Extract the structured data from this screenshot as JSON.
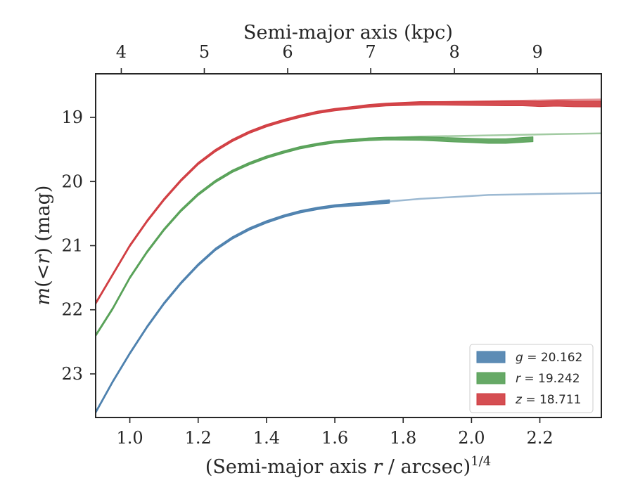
{
  "chart_data": {
    "type": "line",
    "xlabel": "(Semi-major axis r / arcsec)^{1/4}",
    "ylabel": "m(<r) (mag)",
    "top_xlabel": "Semi-major axis (kpc)",
    "xlim": [
      0.9,
      2.38
    ],
    "ylim": [
      23.68,
      18.32
    ],
    "x_ticks": [
      1.0,
      1.2,
      1.4,
      1.6,
      1.8,
      2.0,
      2.2
    ],
    "x_tick_labels": [
      "1.0",
      "1.2",
      "1.4",
      "1.6",
      "1.8",
      "2.0",
      "2.2"
    ],
    "y_ticks": [
      19,
      20,
      21,
      22,
      23
    ],
    "y_tick_labels": [
      "19",
      "20",
      "21",
      "22",
      "23"
    ],
    "top_ticks": [
      4,
      5,
      6,
      7,
      8,
      9
    ],
    "top_tick_labels": [
      "4",
      "5",
      "6",
      "7",
      "8",
      "9"
    ],
    "top_tick_x": [
      0.975,
      1.218,
      1.462,
      1.705,
      1.95,
      2.193
    ],
    "grid": false,
    "legend_position": "bottom-right",
    "series": [
      {
        "name": "g = 20.162",
        "legend_var": "g",
        "legend_val": "= 20.162",
        "color": "#4b7fad",
        "model_x": [
          0.9,
          0.95,
          1.0,
          1.05,
          1.1,
          1.15,
          1.2,
          1.25,
          1.3,
          1.35,
          1.4,
          1.45,
          1.5,
          1.55,
          1.6,
          1.65,
          1.7,
          1.76,
          1.85,
          1.95,
          2.05,
          2.15,
          2.25,
          2.38
        ],
        "model_y": [
          23.6,
          23.12,
          22.68,
          22.27,
          21.9,
          21.58,
          21.3,
          21.06,
          20.88,
          20.74,
          20.63,
          20.54,
          20.47,
          20.42,
          20.38,
          20.35,
          20.33,
          20.31,
          20.27,
          20.24,
          20.21,
          20.2,
          20.19,
          20.18
        ],
        "data_x": [
          0.9,
          0.95,
          1.0,
          1.05,
          1.1,
          1.15,
          1.2,
          1.25,
          1.3,
          1.35,
          1.4,
          1.45,
          1.5,
          1.55,
          1.6,
          1.65,
          1.7,
          1.76
        ],
        "data_y": [
          23.6,
          23.12,
          22.68,
          22.27,
          21.9,
          21.58,
          21.3,
          21.06,
          20.88,
          20.74,
          20.63,
          20.54,
          20.47,
          20.42,
          20.38,
          20.36,
          20.34,
          20.31
        ],
        "data_width": [
          3.5,
          3.5,
          3.5,
          3.5,
          3.5,
          3.5,
          3.5,
          3.5,
          3.5,
          3.5,
          3.5,
          3.5,
          3.5,
          3.5,
          3.5,
          4,
          4.5,
          5
        ]
      },
      {
        "name": "r = 19.242",
        "legend_var": "r",
        "legend_val": "= 19.242",
        "color": "#55a055",
        "model_x": [
          0.9,
          0.95,
          1.0,
          1.05,
          1.1,
          1.15,
          1.2,
          1.25,
          1.3,
          1.35,
          1.4,
          1.45,
          1.5,
          1.55,
          1.6,
          1.65,
          1.7,
          1.75,
          1.85,
          1.95,
          2.05,
          2.15,
          2.25,
          2.38
        ],
        "model_y": [
          22.4,
          21.98,
          21.5,
          21.1,
          20.75,
          20.45,
          20.2,
          20.0,
          19.84,
          19.72,
          19.62,
          19.54,
          19.47,
          19.42,
          19.38,
          19.35,
          19.33,
          19.32,
          19.3,
          19.29,
          19.28,
          19.27,
          19.26,
          19.25
        ],
        "data_x": [
          0.9,
          0.95,
          1.0,
          1.05,
          1.1,
          1.15,
          1.2,
          1.25,
          1.3,
          1.35,
          1.4,
          1.45,
          1.5,
          1.55,
          1.6,
          1.65,
          1.7,
          1.75,
          1.8,
          1.85,
          1.9,
          1.95,
          2.0,
          2.05,
          2.1,
          2.15,
          2.18
        ],
        "data_y": [
          22.4,
          21.98,
          21.5,
          21.1,
          20.75,
          20.45,
          20.2,
          20.0,
          19.84,
          19.72,
          19.62,
          19.54,
          19.47,
          19.42,
          19.38,
          19.36,
          19.34,
          19.33,
          19.33,
          19.33,
          19.34,
          19.35,
          19.36,
          19.37,
          19.37,
          19.35,
          19.34
        ],
        "data_width": [
          3.5,
          3.5,
          3.5,
          3.5,
          3.5,
          3.5,
          3.5,
          3.5,
          3.5,
          3.5,
          3.5,
          3.5,
          3.5,
          3.5,
          3.5,
          3.5,
          4,
          4,
          4.5,
          5,
          5.5,
          6,
          6,
          6.5,
          6.5,
          7,
          7
        ]
      },
      {
        "name": "z = 18.711",
        "legend_var": "z",
        "legend_val": "= 18.711",
        "color": "#d03b3f",
        "model_x": [
          0.9,
          0.95,
          1.0,
          1.05,
          1.1,
          1.15,
          1.2,
          1.25,
          1.3,
          1.35,
          1.4,
          1.45,
          1.5,
          1.55,
          1.6,
          1.65,
          1.7,
          1.75,
          1.85,
          1.95,
          2.05,
          2.15,
          2.25,
          2.38
        ],
        "model_y": [
          21.9,
          21.45,
          21.0,
          20.62,
          20.28,
          19.98,
          19.72,
          19.52,
          19.36,
          19.23,
          19.13,
          19.05,
          18.98,
          18.92,
          18.88,
          18.85,
          18.82,
          18.8,
          18.77,
          18.76,
          18.75,
          18.74,
          18.73,
          18.72
        ],
        "data_x": [
          0.9,
          0.95,
          1.0,
          1.05,
          1.1,
          1.15,
          1.2,
          1.25,
          1.3,
          1.35,
          1.4,
          1.45,
          1.5,
          1.55,
          1.6,
          1.65,
          1.7,
          1.75,
          1.8,
          1.85,
          1.9,
          1.95,
          2.0,
          2.05,
          2.1,
          2.15,
          2.2,
          2.25,
          2.3,
          2.38
        ],
        "data_y": [
          21.9,
          21.45,
          21.0,
          20.62,
          20.28,
          19.98,
          19.72,
          19.52,
          19.36,
          19.23,
          19.13,
          19.05,
          18.98,
          18.92,
          18.88,
          18.85,
          18.82,
          18.8,
          18.79,
          18.78,
          18.78,
          18.78,
          18.78,
          18.78,
          18.78,
          18.78,
          18.79,
          18.78,
          18.79,
          18.79
        ],
        "data_width": [
          3.5,
          3.5,
          3.5,
          3.5,
          3.5,
          3.5,
          3.5,
          3.5,
          3.5,
          3.5,
          3.5,
          3.5,
          3.5,
          3.5,
          3.5,
          3.5,
          4,
          4,
          4.5,
          5,
          5,
          5.5,
          6,
          6.5,
          7,
          7,
          7.5,
          8,
          8,
          8.5
        ]
      }
    ]
  }
}
